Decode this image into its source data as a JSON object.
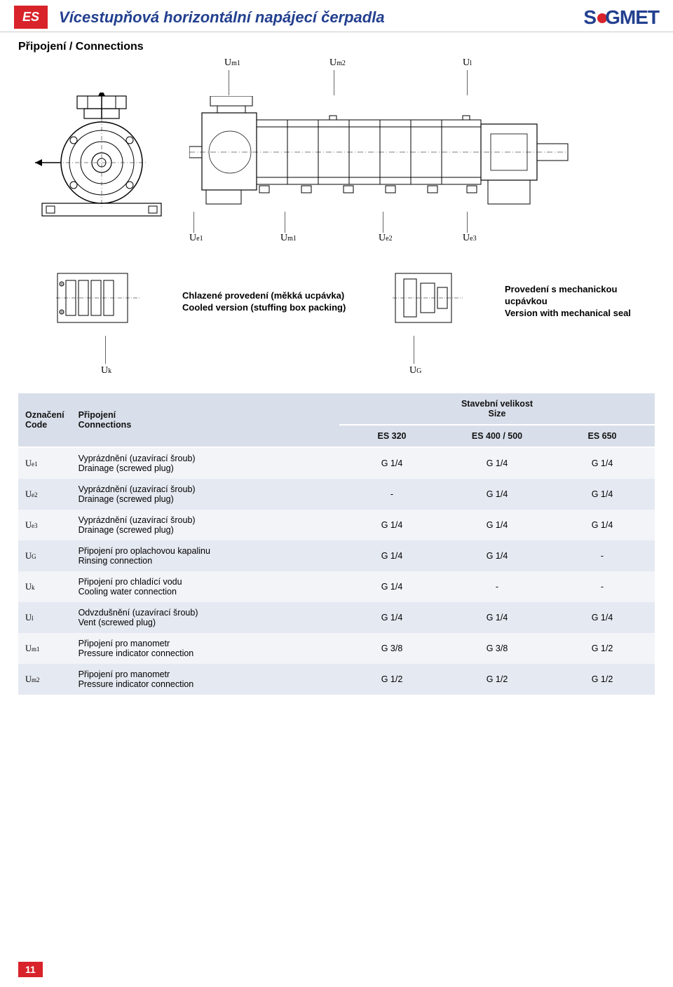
{
  "header": {
    "badge": "ES",
    "title": "Vícestupňová horizontální napájecí čerpadla",
    "logo_text1": "S",
    "logo_text2": "GMET"
  },
  "section_title": "Připojení / Connections",
  "callouts_top": {
    "um1": "U",
    "um1_sub": "m1",
    "um2": "U",
    "um2_sub": "m2",
    "ul": "U",
    "ul_sub": "l"
  },
  "callouts_mid": {
    "ue1": "U",
    "ue1_sub": "e1",
    "um1": "U",
    "um1_sub": "m1",
    "ue2": "U",
    "ue2_sub": "e2",
    "ue3": "U",
    "ue3_sub": "e3"
  },
  "seal_left": {
    "line1": "Chlazené provedení (měkká ucpávka)",
    "line2": "Cooled version (stuffing box packing)"
  },
  "seal_right": {
    "line1": "Provedení s mechanickou ucpávkou",
    "line2": "Version with mechanical seal"
  },
  "callouts_bot": {
    "uk": "U",
    "uk_sub": "k",
    "ug": "U",
    "ug_sub": "G"
  },
  "table": {
    "head_code": "Označení\nCode",
    "head_conn": "Připojení\nConnections",
    "head_size": "Stavební velikost\nSize",
    "cols": [
      "ES 320",
      "ES 400 / 500",
      "ES 650"
    ],
    "rows": [
      {
        "code": "U",
        "sub": "e1",
        "desc1": "Vyprázdnění (uzavírací šroub)",
        "desc2": "Drainage (screwed plug)",
        "v": [
          "G 1/4",
          "G 1/4",
          "G 1/4"
        ]
      },
      {
        "code": "U",
        "sub": "e2",
        "desc1": "Vyprázdnění (uzavírací šroub)",
        "desc2": "Drainage (screwed plug)",
        "v": [
          "-",
          "G 1/4",
          "G 1/4"
        ]
      },
      {
        "code": "U",
        "sub": "e3",
        "desc1": "Vyprázdnění (uzavírací šroub)",
        "desc2": "Drainage (screwed plug)",
        "v": [
          "G 1/4",
          "G 1/4",
          "G 1/4"
        ]
      },
      {
        "code": "U",
        "sub": "G",
        "desc1": "Připojení pro oplachovou kapalinu",
        "desc2": "Rinsing connection",
        "v": [
          "G 1/4",
          "G 1/4",
          "-"
        ]
      },
      {
        "code": "U",
        "sub": "k",
        "desc1": "Připojení pro chladící vodu",
        "desc2": "Cooling water connection",
        "v": [
          "G 1/4",
          "-",
          "-"
        ]
      },
      {
        "code": "U",
        "sub": "l",
        "desc1": "Odvzdušnění (uzavírací šroub)",
        "desc2": "Vent (screwed plug)",
        "v": [
          "G 1/4",
          "G 1/4",
          "G 1/4"
        ]
      },
      {
        "code": "U",
        "sub": "m1",
        "desc1": "Připojení pro manometr",
        "desc2": "Pressure indicator connection",
        "v": [
          "G 3/8",
          "G 3/8",
          "G 1/2"
        ]
      },
      {
        "code": "U",
        "sub": "m2",
        "desc1": "Připojení pro manometr",
        "desc2": "Pressure indicator connection",
        "v": [
          "G 1/2",
          "G 1/2",
          "G 1/2"
        ]
      }
    ]
  },
  "page_number": "11"
}
